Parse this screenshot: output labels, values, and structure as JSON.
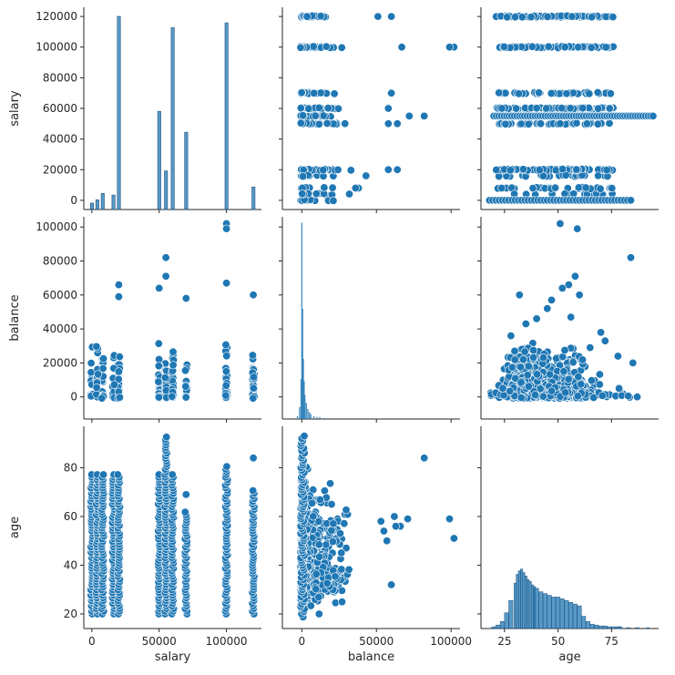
{
  "chart_data": {
    "type": "scatter",
    "title": "",
    "kind": "pairplot",
    "variables": [
      "salary",
      "balance",
      "age"
    ],
    "axis_labels": {
      "salary": "salary",
      "balance": "balance",
      "age": "age"
    },
    "ticks": {
      "salary_y": [
        "0",
        "20000",
        "40000",
        "60000",
        "80000",
        "100000",
        "120000"
      ],
      "salary_x": [
        "0",
        "50000",
        "100000"
      ],
      "balance_y": [
        "0",
        "20000",
        "40000",
        "60000",
        "80000",
        "100000"
      ],
      "balance_x": [
        "0",
        "50000",
        "100000"
      ],
      "age_y": [
        "20",
        "40",
        "60",
        "80"
      ],
      "age_x": [
        "25",
        "50",
        "75"
      ]
    },
    "ranges": {
      "salary": [
        -6000,
        126000
      ],
      "balance": [
        -13000,
        106000
      ],
      "age": [
        14,
        97
      ]
    },
    "salary_levels": [
      0,
      4000,
      8000,
      16000,
      20000,
      50000,
      55000,
      60000,
      70000,
      100000,
      120000
    ],
    "salary_hist": {
      "bins": [
        {
          "x": 0,
          "count": 4
        },
        {
          "x": 4000,
          "count": 6
        },
        {
          "x": 8000,
          "count": 10
        },
        {
          "x": 16000,
          "count": 9
        },
        {
          "x": 20000,
          "count": 120
        },
        {
          "x": 50000,
          "count": 61
        },
        {
          "x": 55000,
          "count": 24
        },
        {
          "x": 60000,
          "count": 113
        },
        {
          "x": 70000,
          "count": 48
        },
        {
          "x": 100000,
          "count": 116
        },
        {
          "x": 120000,
          "count": 14
        }
      ]
    },
    "age_hist": {
      "x": [
        20,
        22,
        24,
        26,
        28,
        30,
        31,
        32,
        33,
        34,
        35,
        36,
        37,
        38,
        39,
        40,
        42,
        44,
        46,
        48,
        50,
        52,
        54,
        56,
        58,
        60,
        62,
        64,
        66,
        68,
        70,
        72,
        74,
        76,
        78,
        80,
        84,
        88,
        92
      ],
      "counts": [
        2,
        4,
        8,
        18,
        32,
        52,
        62,
        66,
        68,
        64,
        60,
        56,
        54,
        50,
        48,
        46,
        42,
        40,
        38,
        36,
        36,
        34,
        32,
        30,
        28,
        26,
        14,
        8,
        5,
        4,
        3,
        3,
        2,
        2,
        2,
        2,
        1,
        1,
        1
      ]
    },
    "balance_hist": {
      "peak_x": 0,
      "note": "sharp spike near 0, long right tail"
    },
    "notable_points": {
      "salary_vs_balance": [
        [
          100000,
          102000
        ],
        [
          100000,
          99000
        ],
        [
          55000,
          82000
        ],
        [
          55000,
          71000
        ],
        [
          100000,
          67000
        ],
        [
          20000,
          66000
        ],
        [
          20000,
          59000
        ],
        [
          50000,
          64000
        ],
        [
          120000,
          60000
        ],
        [
          70000,
          58000
        ]
      ],
      "age_vs_balance": [
        [
          51,
          102000
        ],
        [
          59,
          99000
        ],
        [
          84,
          82000
        ],
        [
          58,
          71000
        ],
        [
          55,
          66000
        ],
        [
          52,
          64000
        ],
        [
          32,
          60000
        ],
        [
          60,
          60000
        ]
      ]
    }
  }
}
